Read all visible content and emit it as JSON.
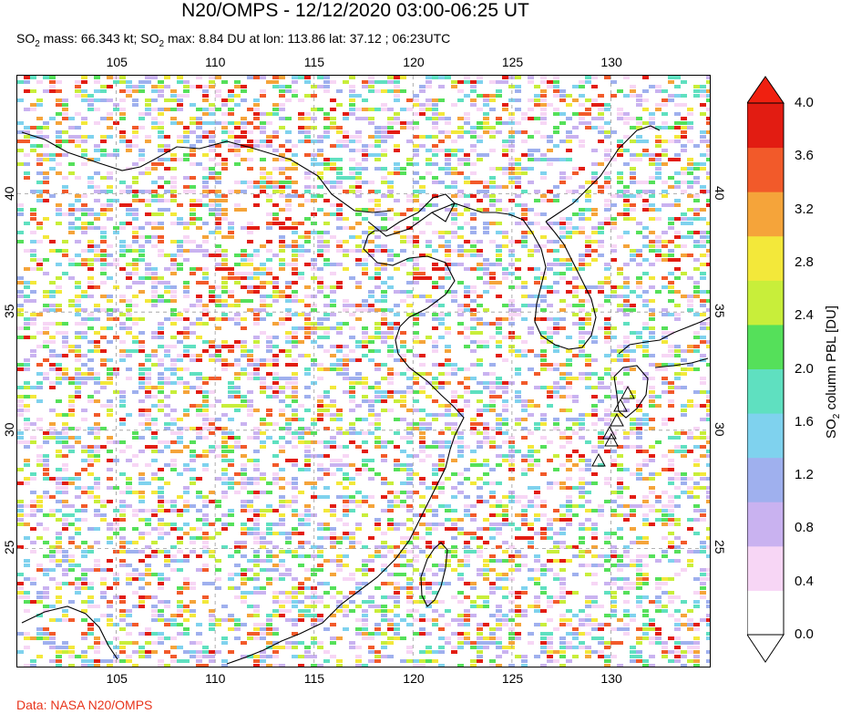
{
  "header": {
    "title": "N20/OMPS - 12/12/2020 03:00-06:25 UT",
    "mass_prefix": "SO",
    "mass_text": " mass: 66.343 kt; SO",
    "max_text": " max: 8.84 DU at lon: 113.86 lat: 37.12 ; 06:23UTC"
  },
  "footer": {
    "credit": "Data: NASA N20/OMPS"
  },
  "map": {
    "lon_ticks": [
      "105",
      "110",
      "115",
      "120",
      "125",
      "130"
    ],
    "lat_ticks": [
      "40",
      "35",
      "30",
      "25"
    ],
    "lon_range": [
      100,
      135
    ],
    "lat_range": [
      20,
      45
    ],
    "volcano_markers": 6
  },
  "colorbar": {
    "label_prefix": "SO",
    "label_suffix": " column PBL [DU]",
    "ticks": [
      "4.0",
      "3.6",
      "3.2",
      "2.8",
      "2.4",
      "2.0",
      "1.6",
      "1.2",
      "0.8",
      "0.4",
      "0.0"
    ],
    "range": [
      0,
      4
    ],
    "colors": [
      "#ffffff",
      "#f7d6f5",
      "#c9b2f0",
      "#9fb0ee",
      "#7fd2ee",
      "#5fe0c0",
      "#55e05a",
      "#c8ee3a",
      "#f3e83a",
      "#f5a43a",
      "#f25a2a",
      "#e21c12"
    ],
    "over_color": "#f02010"
  }
}
